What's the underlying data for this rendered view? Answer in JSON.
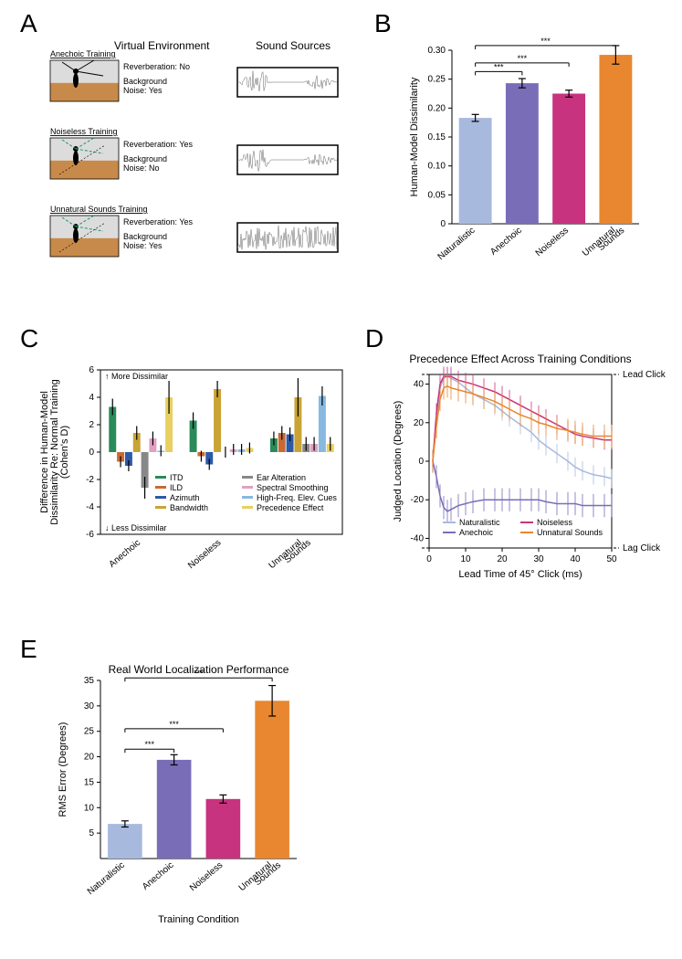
{
  "panelA": {
    "label": "A",
    "col1_header": "Virtual Environment",
    "col2_header": "Sound Sources",
    "rows": [
      {
        "title": "Anechoic Training",
        "reverb_label": "Reverberation: No",
        "noise_label": "Background\nNoise: Yes",
        "wave_type": "speech"
      },
      {
        "title": "Noiseless Training",
        "reverb_label": "Reverberation: Yes",
        "noise_label": "Background\nNoise: No",
        "wave_type": "speech"
      },
      {
        "title": "Unnatural Sounds Training",
        "reverb_label": "Reverberation: Yes",
        "noise_label": "Background\nNoise: Yes",
        "wave_type": "noise"
      }
    ]
  },
  "panelB": {
    "label": "B",
    "type": "bar",
    "ylabel": "Human-Model Dissimilarity",
    "ylim": [
      0,
      0.3
    ],
    "ytick_step": 0.05,
    "categories": [
      "Naturalistic",
      "Anechoic",
      "Noiseless",
      "Unnatural\nSounds"
    ],
    "values": [
      0.183,
      0.243,
      0.225,
      0.292
    ],
    "errors": [
      0.006,
      0.008,
      0.006,
      0.016
    ],
    "colors": [
      "#a8b9de",
      "#7a6db8",
      "#c7337e",
      "#e8872f"
    ],
    "sig": [
      {
        "from": 0,
        "to": 1,
        "y": 0.263,
        "label": "***"
      },
      {
        "from": 0,
        "to": 2,
        "y": 0.278,
        "label": "***"
      },
      {
        "from": 0,
        "to": 3,
        "y": 0.308,
        "label": "***"
      }
    ]
  },
  "panelC": {
    "label": "C",
    "type": "grouped-bar",
    "ylabel": "Difference in Human-Model\nDissimilarity Re: Normal Training\n(Cohen's D)",
    "ylim": [
      -6,
      6
    ],
    "ytick_step": 2,
    "more_label": "More Dissimilar",
    "less_label": "Less Dissimilar",
    "groups": [
      "Anechoic",
      "Noiseless",
      "Unnatural\nSounds"
    ],
    "series": [
      {
        "name": "ITD",
        "color": "#2a8a5a"
      },
      {
        "name": "ILD",
        "color": "#c96a33"
      },
      {
        "name": "Azimuth",
        "color": "#2a5aa8"
      },
      {
        "name": "Bandwidth",
        "color": "#c9a333"
      },
      {
        "name": "Ear Alteration",
        "color": "#888888"
      },
      {
        "name": "Spectral Smoothing",
        "color": "#e0a0c0"
      },
      {
        "name": "High-Freq. Elev. Cues",
        "color": "#88b8e0"
      },
      {
        "name": "Precedence Effect",
        "color": "#e8d060"
      }
    ],
    "values": [
      [
        3.3,
        -0.7,
        -1.0,
        1.4,
        -2.6,
        1.0,
        0.1,
        4.0
      ],
      [
        2.3,
        -0.3,
        -0.9,
        4.6,
        0.0,
        0.2,
        0.2,
        0.3
      ],
      [
        1.0,
        1.4,
        1.3,
        4.0,
        0.6,
        0.6,
        4.1,
        0.6
      ]
    ],
    "errors": [
      [
        0.6,
        0.4,
        0.4,
        0.5,
        0.8,
        0.5,
        0.4,
        1.2
      ],
      [
        0.6,
        0.4,
        0.4,
        0.6,
        0.4,
        0.4,
        0.4,
        0.4
      ],
      [
        0.5,
        0.5,
        0.5,
        1.4,
        0.5,
        0.5,
        0.7,
        0.5
      ]
    ]
  },
  "panelD": {
    "label": "D",
    "type": "line",
    "title": "Precedence Effect Across Training Conditions",
    "xlabel": "Lead Time of 45° Click (ms)",
    "ylabel": "Judged Location (Degrees)",
    "xlim": [
      0,
      50
    ],
    "xtick_step": 10,
    "ylim": [
      -45,
      45
    ],
    "yticks": [
      -40,
      -20,
      0,
      20,
      40
    ],
    "lead_label": "Lead Click",
    "lag_label": "Lag Click",
    "series": [
      {
        "name": "Naturalistic",
        "color": "#a8b9de",
        "x": [
          1,
          2,
          3,
          4,
          5,
          6,
          8,
          10,
          12,
          15,
          18,
          20,
          22,
          25,
          28,
          30,
          32,
          35,
          38,
          40,
          42,
          45,
          48,
          50
        ],
        "y": [
          0,
          20,
          38,
          43,
          44,
          43,
          41,
          38,
          35,
          32,
          29,
          26,
          23,
          19,
          15,
          11,
          8,
          4,
          0,
          -3,
          -5,
          -7,
          -8,
          -9
        ],
        "err": 5
      },
      {
        "name": "Anechoic",
        "color": "#7a6db8",
        "x": [
          1,
          2,
          3,
          4,
          5,
          6,
          8,
          10,
          12,
          15,
          18,
          20,
          22,
          25,
          28,
          30,
          32,
          35,
          38,
          40,
          42,
          45,
          48,
          50
        ],
        "y": [
          0,
          -8,
          -18,
          -24,
          -26,
          -25,
          -23,
          -22,
          -21,
          -20,
          -20,
          -20,
          -20,
          -20,
          -20,
          -20,
          -21,
          -22,
          -22,
          -22,
          -23,
          -23,
          -23,
          -23
        ],
        "err": 6
      },
      {
        "name": "Noiseless",
        "color": "#c7337e",
        "x": [
          1,
          2,
          3,
          4,
          5,
          6,
          8,
          10,
          12,
          15,
          18,
          20,
          22,
          25,
          28,
          30,
          32,
          35,
          38,
          40,
          42,
          45,
          48,
          50
        ],
        "y": [
          0,
          25,
          40,
          44,
          44,
          44,
          42,
          41,
          40,
          38,
          36,
          34,
          32,
          29,
          26,
          24,
          22,
          19,
          16,
          14,
          13,
          12,
          11,
          11
        ],
        "err": 5
      },
      {
        "name": "Unnatural Sounds",
        "color": "#e8872f",
        "x": [
          1,
          2,
          3,
          4,
          5,
          6,
          8,
          10,
          12,
          15,
          18,
          20,
          22,
          25,
          28,
          30,
          32,
          35,
          38,
          40,
          42,
          45,
          48,
          50
        ],
        "y": [
          0,
          18,
          32,
          38,
          39,
          38,
          37,
          36,
          35,
          33,
          31,
          29,
          27,
          24,
          22,
          20,
          19,
          17,
          16,
          15,
          14,
          13,
          13,
          13
        ],
        "err": 6
      }
    ]
  },
  "panelE": {
    "label": "E",
    "type": "bar",
    "title": "Real World Localization Performance",
    "xlabel": "Training Condition",
    "ylabel": "RMS Error (Degrees)",
    "ylim": [
      0,
      35
    ],
    "yticks": [
      5,
      10,
      15,
      20,
      25,
      30,
      35
    ],
    "categories": [
      "Naturalistic",
      "Anechoic",
      "Noiseless",
      "Unnatural\nSounds"
    ],
    "values": [
      6.8,
      19.4,
      11.7,
      31.0
    ],
    "errors": [
      0.6,
      1.0,
      0.8,
      3.0
    ],
    "colors": [
      "#a8b9de",
      "#7a6db8",
      "#c7337e",
      "#e8872f"
    ],
    "sig": [
      {
        "from": 0,
        "to": 1,
        "y": 21.5,
        "label": "***"
      },
      {
        "from": 0,
        "to": 2,
        "y": 25.5,
        "label": "***"
      },
      {
        "from": 0,
        "to": 3,
        "y": 35.5,
        "label": "***"
      }
    ]
  }
}
